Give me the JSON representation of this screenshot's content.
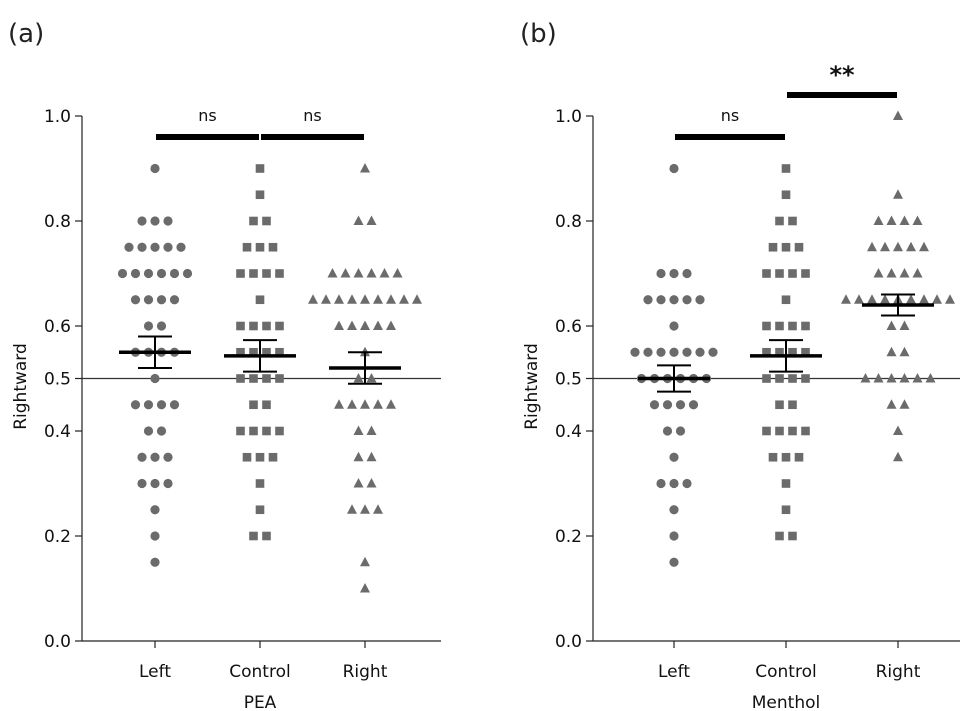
{
  "chart_data": [
    {
      "panel_label": "(a)",
      "type": "scatter",
      "xlabel": "PEA",
      "ylabel": "Rightward",
      "ylim": [
        0,
        1
      ],
      "y_ticks": [
        "0.0",
        "0.2",
        "0.4",
        "0.5",
        "0.6",
        "0.8",
        "1.0"
      ],
      "categories": [
        "Left",
        "Control",
        "Right"
      ],
      "reference_line": 0.5,
      "marker_color": "#6b6b6b",
      "series": [
        {
          "category": "Left",
          "marker": "circle",
          "values": [
            0.9,
            0.8,
            0.8,
            0.8,
            0.75,
            0.75,
            0.75,
            0.75,
            0.75,
            0.7,
            0.7,
            0.7,
            0.7,
            0.7,
            0.7,
            0.65,
            0.65,
            0.65,
            0.65,
            0.6,
            0.6,
            0.55,
            0.55,
            0.55,
            0.55,
            0.5,
            0.45,
            0.45,
            0.45,
            0.45,
            0.4,
            0.4,
            0.35,
            0.35,
            0.35,
            0.3,
            0.3,
            0.3,
            0.25,
            0.2,
            0.15
          ],
          "mean": 0.55,
          "sem": [
            0.52,
            0.58
          ]
        },
        {
          "category": "Control",
          "marker": "square",
          "values": [
            0.9,
            0.85,
            0.8,
            0.8,
            0.75,
            0.75,
            0.75,
            0.7,
            0.7,
            0.7,
            0.7,
            0.65,
            0.6,
            0.6,
            0.6,
            0.6,
            0.55,
            0.55,
            0.55,
            0.55,
            0.5,
            0.5,
            0.5,
            0.5,
            0.45,
            0.45,
            0.4,
            0.4,
            0.4,
            0.4,
            0.35,
            0.35,
            0.35,
            0.3,
            0.25,
            0.2,
            0.2
          ],
          "mean": 0.543,
          "sem": [
            0.513,
            0.573
          ]
        },
        {
          "category": "Right",
          "marker": "triangle",
          "values": [
            0.9,
            0.8,
            0.8,
            0.7,
            0.7,
            0.7,
            0.7,
            0.7,
            0.7,
            0.65,
            0.65,
            0.65,
            0.65,
            0.65,
            0.65,
            0.65,
            0.65,
            0.65,
            0.6,
            0.6,
            0.6,
            0.6,
            0.6,
            0.55,
            0.5,
            0.5,
            0.45,
            0.45,
            0.45,
            0.45,
            0.45,
            0.4,
            0.4,
            0.35,
            0.35,
            0.3,
            0.3,
            0.25,
            0.25,
            0.25,
            0.15,
            0.1
          ],
          "mean": 0.52,
          "sem": [
            0.49,
            0.55
          ]
        }
      ],
      "comparisons": [
        {
          "from": "Left",
          "to": "Control",
          "label": "ns",
          "level": 0.96
        },
        {
          "from": "Control",
          "to": "Right",
          "label": "ns",
          "level": 0.96
        }
      ]
    },
    {
      "panel_label": "(b)",
      "type": "scatter",
      "xlabel": "Menthol",
      "ylabel": "Rightward",
      "ylim": [
        0,
        1
      ],
      "y_ticks": [
        "0.0",
        "0.2",
        "0.4",
        "0.5",
        "0.6",
        "0.8",
        "1.0"
      ],
      "categories": [
        "Left",
        "Control",
        "Right"
      ],
      "reference_line": 0.5,
      "marker_color": "#6b6b6b",
      "series": [
        {
          "category": "Left",
          "marker": "circle",
          "values": [
            0.9,
            0.7,
            0.7,
            0.7,
            0.65,
            0.65,
            0.65,
            0.65,
            0.65,
            0.6,
            0.55,
            0.55,
            0.55,
            0.55,
            0.55,
            0.55,
            0.55,
            0.5,
            0.5,
            0.5,
            0.5,
            0.5,
            0.5,
            0.45,
            0.45,
            0.45,
            0.45,
            0.4,
            0.4,
            0.35,
            0.3,
            0.3,
            0.3,
            0.25,
            0.2,
            0.15
          ],
          "mean": 0.5,
          "sem": [
            0.475,
            0.525
          ]
        },
        {
          "category": "Control",
          "marker": "square",
          "values": [
            0.9,
            0.85,
            0.8,
            0.8,
            0.75,
            0.75,
            0.75,
            0.7,
            0.7,
            0.7,
            0.7,
            0.65,
            0.6,
            0.6,
            0.6,
            0.6,
            0.55,
            0.55,
            0.55,
            0.55,
            0.5,
            0.5,
            0.5,
            0.5,
            0.45,
            0.45,
            0.4,
            0.4,
            0.4,
            0.4,
            0.35,
            0.35,
            0.35,
            0.3,
            0.25,
            0.2,
            0.2
          ],
          "mean": 0.543,
          "sem": [
            0.513,
            0.573
          ]
        },
        {
          "category": "Right",
          "marker": "triangle",
          "values": [
            1.0,
            0.85,
            0.8,
            0.8,
            0.8,
            0.8,
            0.75,
            0.75,
            0.75,
            0.75,
            0.75,
            0.7,
            0.7,
            0.7,
            0.7,
            0.65,
            0.65,
            0.65,
            0.65,
            0.65,
            0.65,
            0.65,
            0.65,
            0.65,
            0.6,
            0.6,
            0.55,
            0.55,
            0.5,
            0.5,
            0.5,
            0.5,
            0.5,
            0.5,
            0.45,
            0.45,
            0.4,
            0.35
          ],
          "mean": 0.64,
          "sem": [
            0.62,
            0.66
          ]
        }
      ],
      "comparisons": [
        {
          "from": "Left",
          "to": "Control",
          "label": "ns",
          "level": 0.96
        },
        {
          "from": "Control",
          "to": "Right",
          "label": "**",
          "level": 1.04
        }
      ]
    }
  ]
}
